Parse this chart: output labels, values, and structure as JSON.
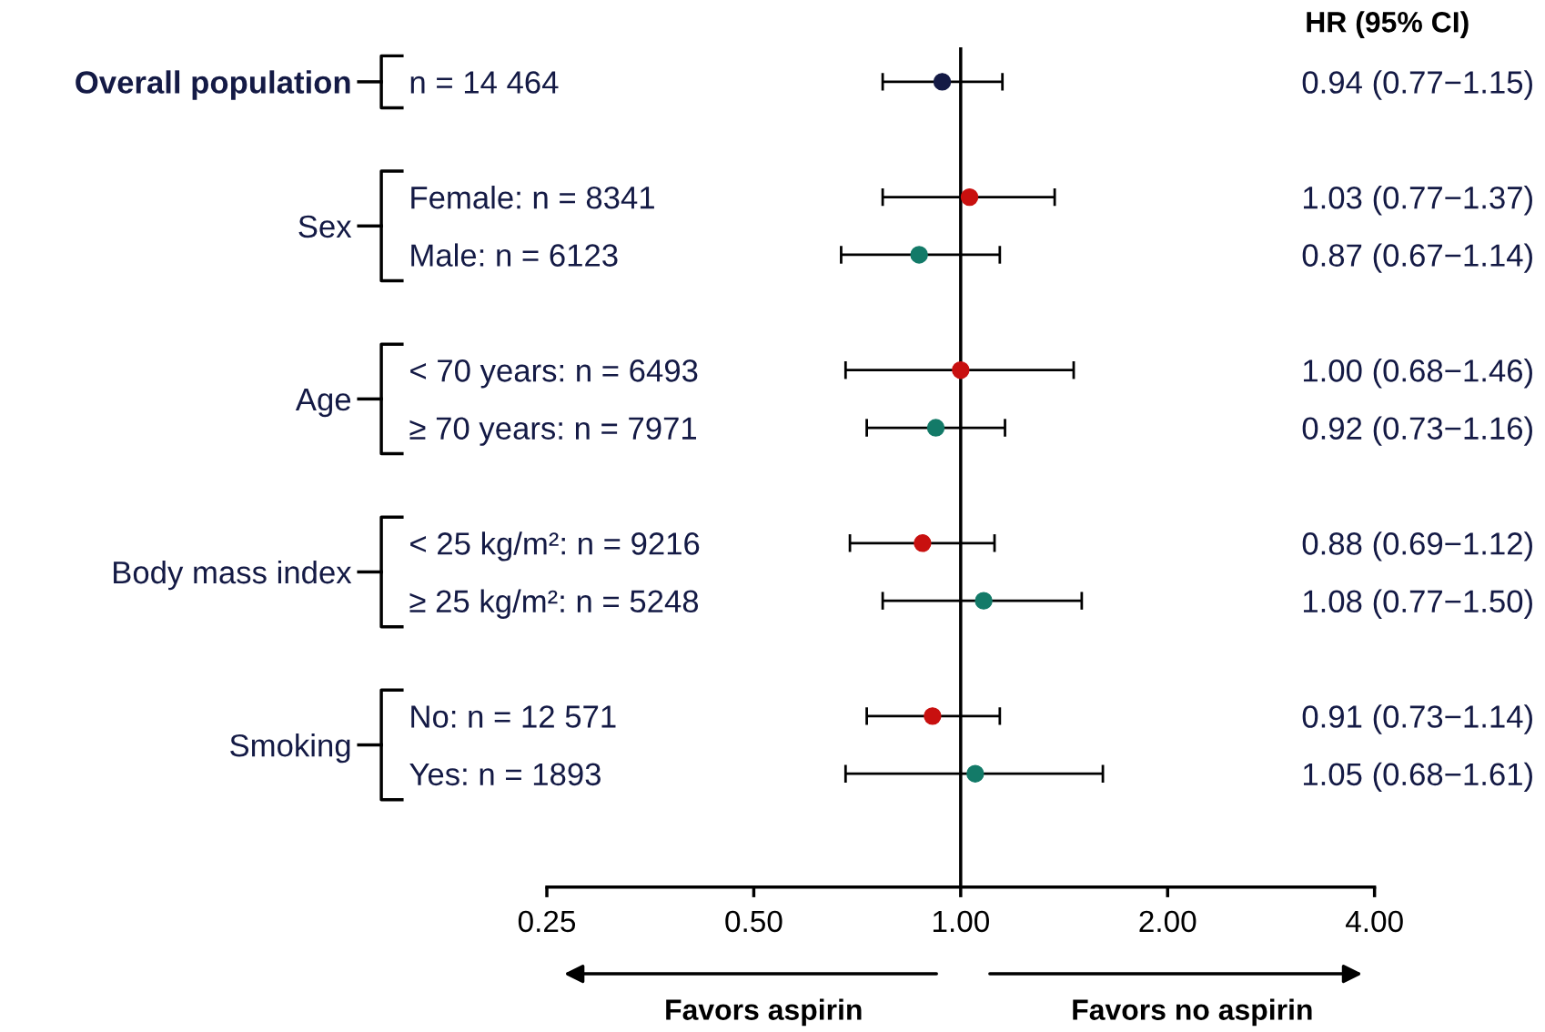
{
  "chart_data": {
    "type": "scatter",
    "orientation": "horizontal",
    "log": "x",
    "marker": "circle",
    "categories": [
      "n = 14 464",
      null,
      "Female: n = 8341",
      "Male: n = 6123",
      null,
      "< 70 years: n = 6493",
      "≥ 70 years: n = 7971",
      null,
      "< 25 kg/m²: n = 9216",
      "≥ 25 kg/m²: n = 5248",
      null,
      "No: n = 12 571",
      "Yes: n = 1893"
    ],
    "values": [
      0.94,
      null,
      1.03,
      0.87,
      null,
      1.0,
      0.92,
      null,
      0.88,
      1.08,
      null,
      0.91,
      1.05
    ],
    "errors": [
      [
        0.77,
        1.15
      ],
      null,
      [
        0.77,
        1.37
      ],
      [
        0.67,
        1.14
      ],
      null,
      [
        0.68,
        1.46
      ],
      [
        0.73,
        1.16
      ],
      null,
      [
        0.69,
        1.12
      ],
      [
        0.77,
        1.5
      ],
      null,
      [
        0.73,
        1.14
      ],
      [
        0.68,
        1.61
      ]
    ],
    "colors": [
      "#141a45",
      null,
      "#c8100f",
      "#137a68",
      null,
      "#c8100f",
      "#137a68",
      null,
      "#c8100f",
      "#137a68",
      null,
      "#c8100f",
      "#137a68"
    ],
    "value_labels": [
      "0.94 (0.77−1.15)",
      null,
      "1.03 (0.77−1.37)",
      "0.87 (0.67−1.14)",
      null,
      "1.00 (0.68−1.46)",
      "0.92 (0.73−1.16)",
      null,
      "0.88 (0.69−1.12)",
      "1.08 (0.77−1.50)",
      null,
      "0.91 (0.73−1.14)",
      "1.05 (0.68−1.61)"
    ],
    "xlim": [
      0.25,
      4
    ],
    "xticks": [
      {
        "value": 0.25,
        "label": "0.25"
      },
      {
        "value": 0.5,
        "label": "0.50"
      },
      {
        "value": 1,
        "label": "1.00"
      },
      {
        "value": 2,
        "label": "2.00"
      },
      {
        "value": 4,
        "label": "4.00"
      }
    ],
    "ref_lines": [
      {
        "axis": "x",
        "value": 1,
        "color": "#000000"
      }
    ],
    "annotations": [
      "Overall population",
      "Sex",
      "Age",
      "Body mass index",
      "Smoking",
      "HR (95% CI)",
      "Favors aspirin",
      "Favors no aspirin"
    ]
  }
}
